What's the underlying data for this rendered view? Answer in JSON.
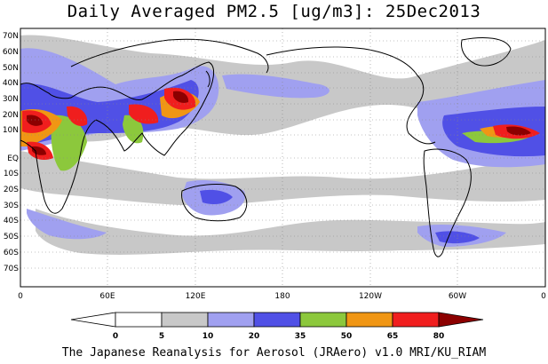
{
  "title": "Daily Averaged PM2.5 [ug/m3]: 25Dec2013",
  "footer": "The Japanese Reanalysis for Aerosol (JRAero) v1.0 MRI/KU_RIAM",
  "lat_labels": [
    "70N",
    "60N",
    "50N",
    "40N",
    "30N",
    "20N",
    "10N",
    "EQ",
    "10S",
    "20S",
    "30S",
    "40S",
    "50S",
    "60S",
    "70S"
  ],
  "lon_labels": [
    "0",
    "60E",
    "120E",
    "180",
    "120W",
    "60W",
    "0"
  ],
  "colorbar": {
    "labels": [
      "0",
      "5",
      "10",
      "20",
      "35",
      "50",
      "65",
      "80"
    ],
    "colors": [
      "#ffffff",
      "#c8c8c8",
      "#a0a0f0",
      "#5050e6",
      "#8cc83c",
      "#f09614",
      "#f01e1e",
      "#8c0000"
    ]
  },
  "colors": {
    "gray": "#c8c8c8",
    "light_blue": "#a0a0f0",
    "blue": "#5050e6",
    "green": "#8cc83c",
    "orange": "#f09614",
    "red": "#f01e1e",
    "dark_red": "#8c0000"
  }
}
